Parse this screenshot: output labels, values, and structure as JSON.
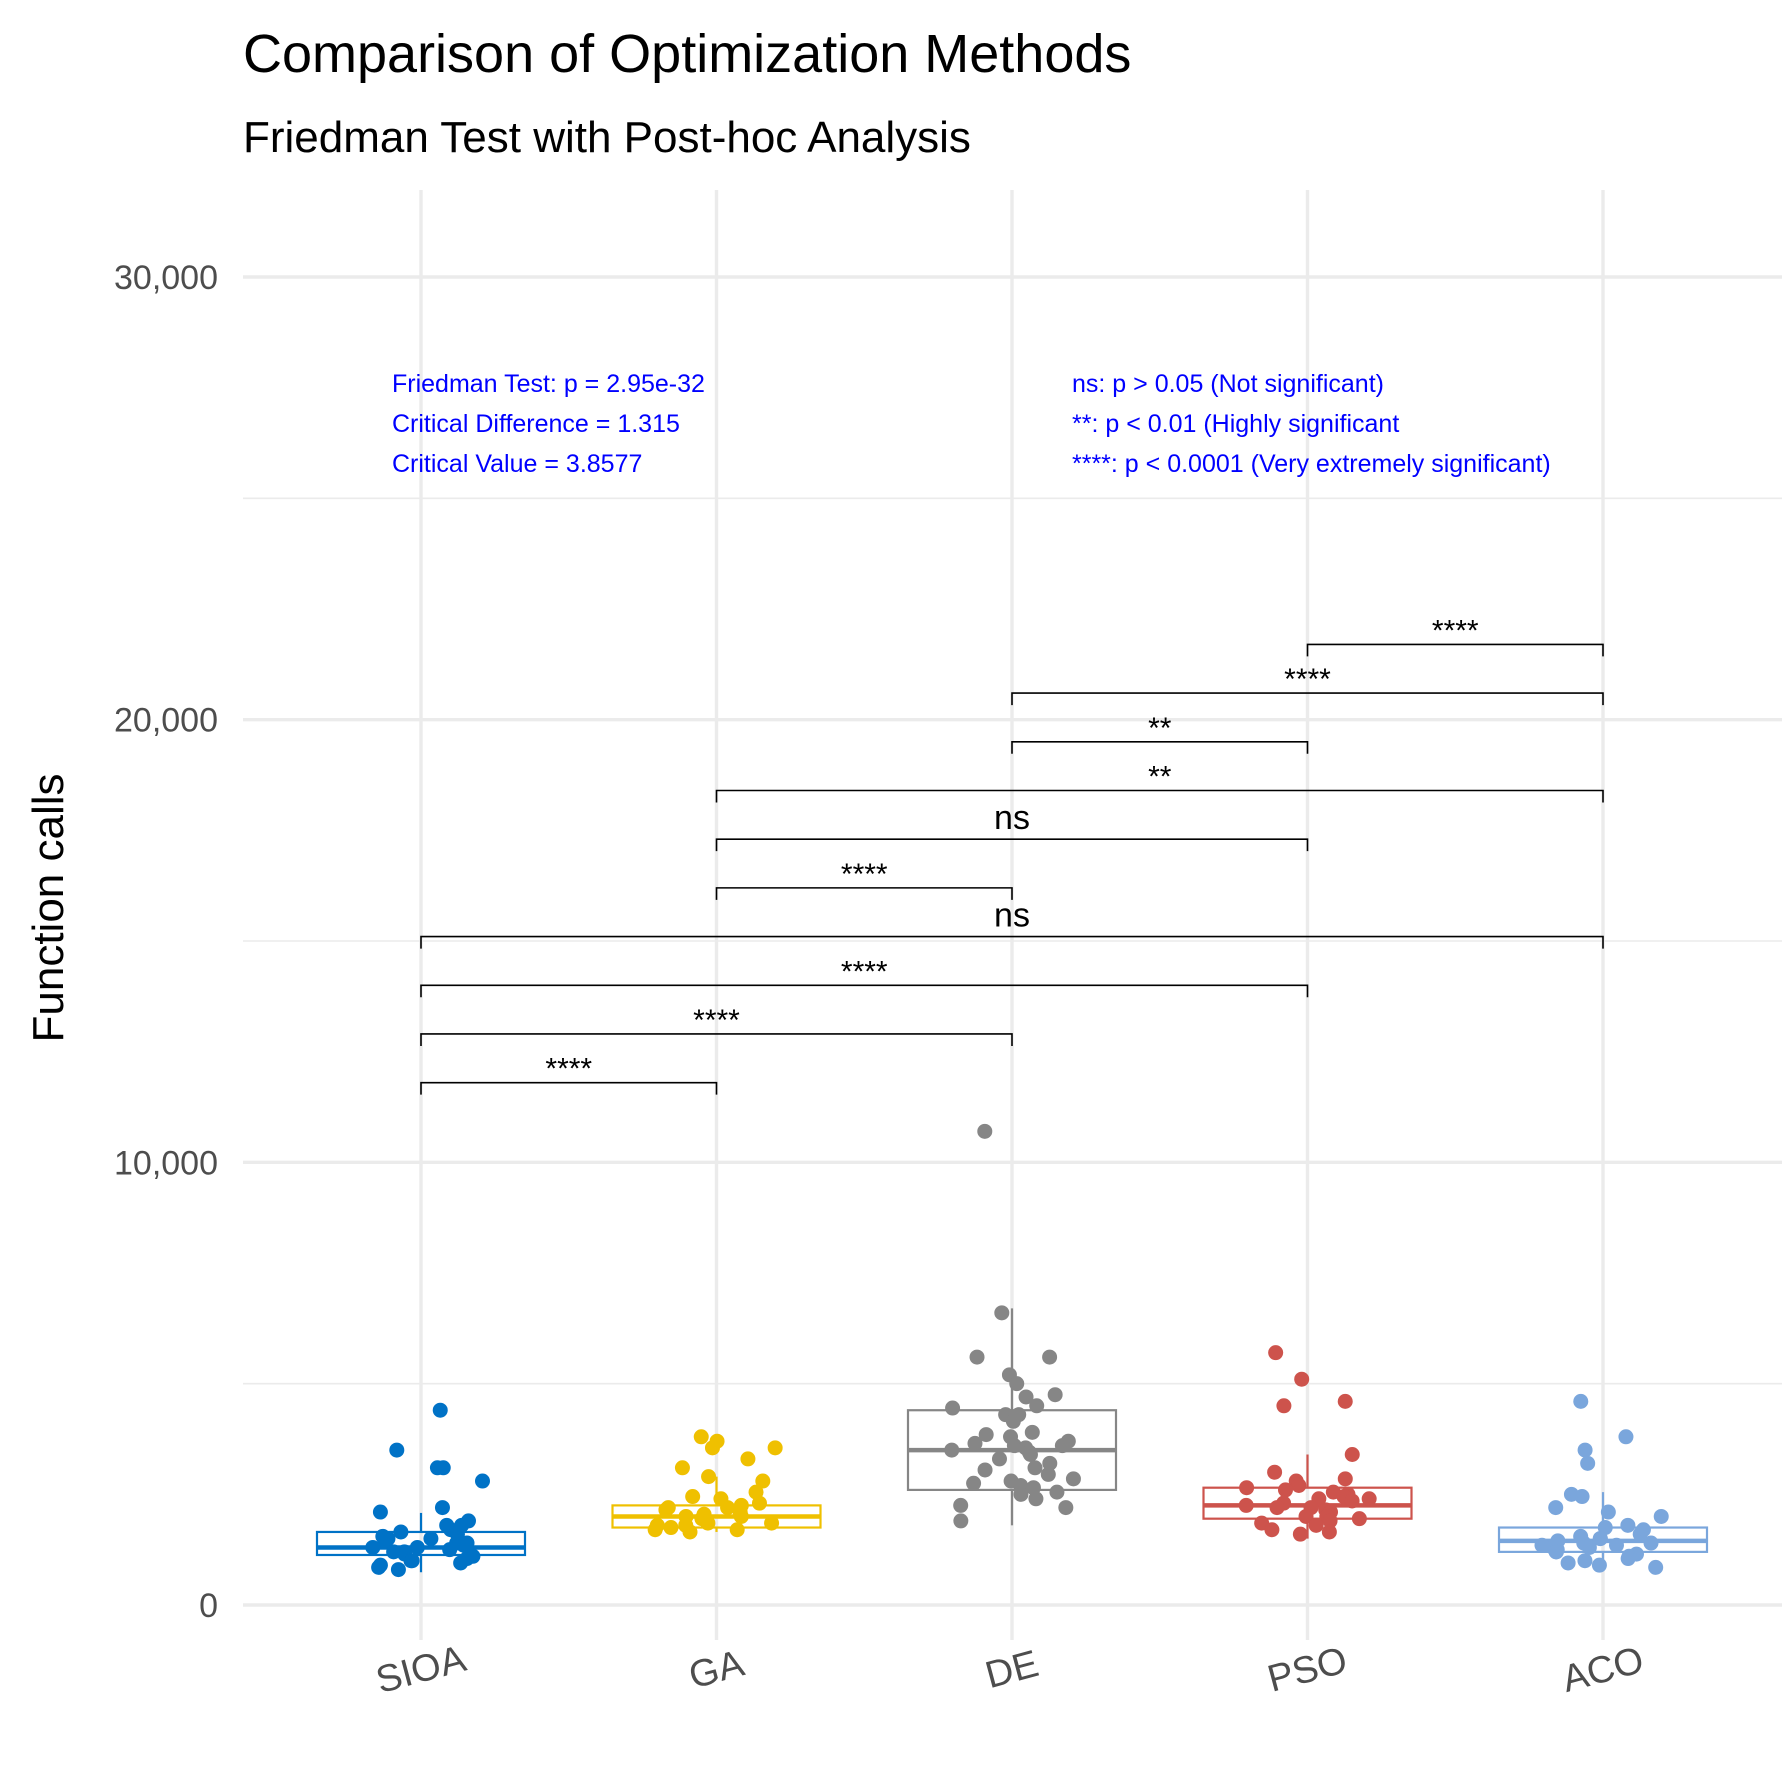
{
  "chart_data": {
    "type": "box",
    "title": "Comparison of Optimization Methods",
    "subtitle": "Friedman Test with Post-hoc Analysis",
    "xlabel": "",
    "ylabel": "Function calls",
    "ylim": [
      -400,
      31500
    ],
    "yticks": [
      0,
      10000,
      20000,
      30000
    ],
    "ytick_labels": [
      "0",
      "10,000",
      "20,000",
      "30,000"
    ],
    "grid": true,
    "x_tick_rotation_deg": -15,
    "categories": [
      "SIOA",
      "GA",
      "DE",
      "PSO",
      "ACO"
    ],
    "colors": {
      "SIOA": "#0072c6",
      "GA": "#efc000",
      "DE": "#868686",
      "PSO": "#cd534c",
      "ACO": "#7aa6dc"
    },
    "boxes": [
      {
        "name": "SIOA",
        "q1": 1130,
        "median": 1300,
        "q3": 1650,
        "whisker_low": 740,
        "whisker_high": 2080,
        "points": [
          4400,
          3500,
          3100,
          2800,
          3100,
          2200,
          2100,
          1900,
          1800,
          1800,
          1700,
          1650,
          1600,
          1550,
          1500,
          1500,
          1450,
          1400,
          1400,
          1350,
          1300,
          1300,
          1250,
          1200,
          1200,
          1150,
          1100,
          1050,
          1000,
          1000,
          950,
          900,
          850,
          800
        ]
      },
      {
        "name": "GA",
        "q1": 1750,
        "median": 2000,
        "q3": 2250,
        "whisker_low": 1650,
        "whisker_high": 2900,
        "points": [
          3800,
          3700,
          3550,
          3550,
          3300,
          3100,
          2900,
          2800,
          2550,
          2450,
          2400,
          2300,
          2250,
          2200,
          2200,
          2150,
          2100,
          2050,
          2000,
          2000,
          1950,
          1950,
          1900,
          1850,
          1850,
          1800,
          1800,
          1750,
          1700,
          1700,
          1650
        ]
      },
      {
        "name": "DE",
        "q1": 2600,
        "median": 3500,
        "q3": 4400,
        "whisker_low": 1800,
        "whisker_high": 6700,
        "points": [
          10700,
          6600,
          5600,
          5600,
          5200,
          5000,
          4750,
          4700,
          4500,
          4450,
          4300,
          4300,
          4150,
          3900,
          3850,
          3800,
          3700,
          3650,
          3600,
          3600,
          3550,
          3500,
          3450,
          3400,
          3300,
          3200,
          3100,
          3050,
          2950,
          2850,
          2800,
          2750,
          2700,
          2650,
          2550,
          2500,
          2400,
          2250,
          2200,
          1900
        ]
      },
      {
        "name": "PSO",
        "q1": 1950,
        "median": 2250,
        "q3": 2650,
        "whisker_low": 1500,
        "whisker_high": 3400,
        "points": [
          5700,
          5100,
          4600,
          4500,
          3400,
          3000,
          2850,
          2800,
          2700,
          2650,
          2600,
          2550,
          2500,
          2450,
          2400,
          2400,
          2350,
          2300,
          2250,
          2200,
          2200,
          2150,
          2100,
          2050,
          2000,
          2000,
          1950,
          1900,
          1850,
          1800,
          1700,
          1650,
          1600
        ]
      },
      {
        "name": "ACO",
        "q1": 1200,
        "median": 1450,
        "q3": 1750,
        "whisker_low": 800,
        "whisker_high": 2550,
        "points": [
          4600,
          3800,
          3500,
          3200,
          2500,
          2450,
          2200,
          2100,
          2000,
          1800,
          1750,
          1700,
          1600,
          1550,
          1500,
          1500,
          1450,
          1400,
          1400,
          1350,
          1350,
          1300,
          1300,
          1250,
          1200,
          1200,
          1150,
          1100,
          1050,
          1000,
          950,
          900,
          850
        ]
      }
    ],
    "comparisons": [
      {
        "from": "SIOA",
        "to": "GA",
        "y": 11800,
        "label": "****"
      },
      {
        "from": "SIOA",
        "to": "DE",
        "y": 12900,
        "label": "****"
      },
      {
        "from": "SIOA",
        "to": "PSO",
        "y": 14000,
        "label": "****"
      },
      {
        "from": "SIOA",
        "to": "ACO",
        "y": 15100,
        "label": "ns"
      },
      {
        "from": "GA",
        "to": "DE",
        "y": 16200,
        "label": "****"
      },
      {
        "from": "GA",
        "to": "PSO",
        "y": 17300,
        "label": "ns"
      },
      {
        "from": "GA",
        "to": "ACO",
        "y": 18400,
        "label": "**"
      },
      {
        "from": "DE",
        "to": "PSO",
        "y": 19500,
        "label": "**"
      },
      {
        "from": "DE",
        "to": "ACO",
        "y": 20600,
        "label": "****"
      },
      {
        "from": "PSO",
        "to": "ACO",
        "y": 21700,
        "label": "****"
      }
    ],
    "annotations_left": [
      "Friedman Test: p = 2.95e-32",
      "Critical Difference = 1.315",
      "Critical Value = 3.8577"
    ],
    "annotations_right": [
      "ns: p > 0.05 (Not significant)",
      "**: p < 0.01 (Highly significant",
      "****: p < 0.0001  (Very extremely significant)"
    ],
    "annotation_color": "#0000ff"
  }
}
